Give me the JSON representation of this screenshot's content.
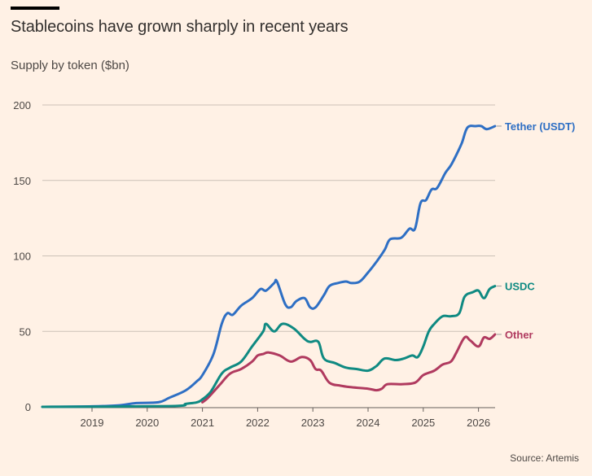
{
  "header": {
    "title": "Stablecoins have grown sharply in recent years",
    "subtitle": "Supply by token ($bn)"
  },
  "footer": {
    "source": "Source: Artemis"
  },
  "chart_data": {
    "type": "line",
    "title": "Stablecoins have grown sharply in recent years",
    "subtitle": "Supply by token ($bn)",
    "xlabel": "",
    "ylabel": "Supply ($bn)",
    "xlim": [
      2018.1,
      2026.3
    ],
    "ylim": [
      0,
      200
    ],
    "grid": true,
    "yticks": [
      0,
      50,
      100,
      150,
      200
    ],
    "xticks": [
      2019,
      2020,
      2021,
      2022,
      2023,
      2024,
      2025,
      2026
    ],
    "legend": "inline-right",
    "series": [
      {
        "name": "Tether (USDT)",
        "color": "#2e6fc4",
        "x": [
          2018.1,
          2019.0,
          2019.5,
          2019.8,
          2020.2,
          2020.4,
          2020.7,
          2020.9,
          2021.0,
          2021.2,
          2021.35,
          2021.45,
          2021.55,
          2021.7,
          2021.9,
          2022.05,
          2022.15,
          2022.3,
          2022.35,
          2022.5,
          2022.6,
          2022.7,
          2022.85,
          2022.95,
          2023.05,
          2023.2,
          2023.3,
          2023.45,
          2023.6,
          2023.7,
          2023.85,
          2024.0,
          2024.15,
          2024.3,
          2024.4,
          2024.6,
          2024.75,
          2024.85,
          2024.95,
          2025.05,
          2025.15,
          2025.25,
          2025.4,
          2025.5,
          2025.6,
          2025.7,
          2025.8,
          2025.95,
          2026.05,
          2026.15,
          2026.3
        ],
        "values": [
          0,
          0.3,
          1,
          2.5,
          3,
          6,
          11,
          17,
          21,
          35,
          55,
          62,
          61,
          67,
          72,
          78,
          77,
          82,
          83,
          68,
          66,
          70,
          72,
          66,
          66,
          74,
          80,
          82,
          83,
          82,
          83,
          89,
          96,
          104,
          111,
          112,
          118,
          118,
          135,
          137,
          144,
          145,
          155,
          160,
          167,
          175,
          185,
          186,
          186,
          184,
          186
        ]
      },
      {
        "name": "USDC",
        "color": "#0f8a82",
        "x": [
          2018.1,
          2020.4,
          2020.7,
          2020.9,
          2021.0,
          2021.15,
          2021.35,
          2021.5,
          2021.7,
          2021.9,
          2022.1,
          2022.15,
          2022.3,
          2022.45,
          2022.65,
          2022.85,
          2022.95,
          2023.1,
          2023.2,
          2023.4,
          2023.6,
          2023.8,
          2024.0,
          2024.15,
          2024.3,
          2024.5,
          2024.65,
          2024.8,
          2024.9,
          2025.0,
          2025.1,
          2025.2,
          2025.35,
          2025.5,
          2025.65,
          2025.75,
          2025.9,
          2026.0,
          2026.1,
          2026.2,
          2026.3
        ],
        "values": [
          0,
          0.5,
          2,
          3,
          5,
          10,
          22,
          26,
          30,
          40,
          50,
          55,
          50,
          55,
          52,
          45,
          43,
          43,
          32,
          29,
          26,
          25,
          24,
          27,
          32,
          31,
          32,
          34,
          33,
          40,
          50,
          55,
          60,
          60,
          62,
          73,
          76,
          77,
          72,
          78,
          80
        ]
      },
      {
        "name": "Other",
        "color": "#b03a5f",
        "x": [
          2021.0,
          2021.1,
          2021.3,
          2021.5,
          2021.7,
          2021.9,
          2022.0,
          2022.1,
          2022.2,
          2022.4,
          2022.6,
          2022.8,
          2022.95,
          2023.05,
          2023.15,
          2023.3,
          2023.5,
          2023.7,
          2024.0,
          2024.15,
          2024.25,
          2024.35,
          2024.6,
          2024.85,
          2025.0,
          2025.2,
          2025.35,
          2025.5,
          2025.6,
          2025.75,
          2025.85,
          2026.0,
          2026.1,
          2026.2,
          2026.3
        ],
        "values": [
          3,
          6,
          14,
          22,
          25,
          30,
          34,
          35,
          36,
          34,
          30,
          33,
          31,
          25,
          24,
          16,
          14,
          13,
          12,
          11,
          12,
          15,
          15,
          16,
          21,
          24,
          28,
          30,
          36,
          46,
          44,
          40,
          46,
          45,
          48
        ]
      }
    ]
  }
}
